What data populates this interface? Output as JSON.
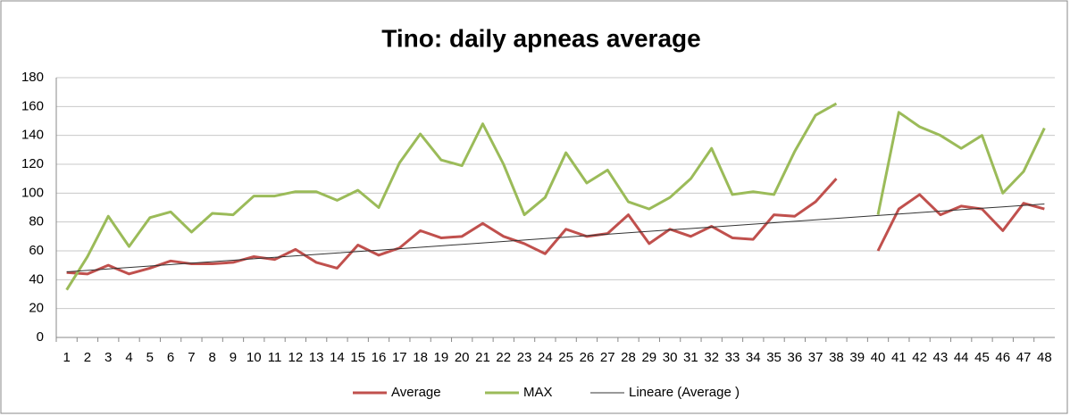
{
  "chart_data": {
    "type": "line",
    "title": "Tino: daily apneas average",
    "categories": [
      1,
      2,
      3,
      4,
      5,
      6,
      7,
      8,
      9,
      10,
      11,
      12,
      13,
      14,
      15,
      16,
      17,
      18,
      19,
      20,
      21,
      22,
      23,
      24,
      25,
      26,
      27,
      28,
      29,
      30,
      31,
      32,
      33,
      34,
      35,
      36,
      37,
      38,
      39,
      40,
      41,
      42,
      43,
      44,
      45,
      46,
      47,
      48
    ],
    "series": [
      {
        "name": "Average",
        "color": "#c0504d",
        "values": [
          45,
          44,
          50,
          44,
          48,
          53,
          51,
          51,
          52,
          56,
          54,
          61,
          52,
          48,
          64,
          57,
          62,
          74,
          69,
          70,
          79,
          70,
          65,
          58,
          75,
          70,
          72,
          85,
          65,
          75,
          70,
          77,
          69,
          68,
          85,
          84,
          94,
          110,
          null,
          60,
          89,
          99,
          85,
          91,
          89,
          74,
          93,
          89
        ]
      },
      {
        "name": "MAX",
        "color": "#9bbb59",
        "values": [
          33,
          56,
          84,
          63,
          83,
          87,
          73,
          86,
          85,
          98,
          98,
          101,
          101,
          95,
          102,
          90,
          121,
          141,
          123,
          119,
          148,
          120,
          85,
          97,
          128,
          107,
          116,
          94,
          89,
          97,
          110,
          131,
          99,
          101,
          99,
          129,
          154,
          162,
          null,
          85,
          156,
          146,
          140,
          131,
          140,
          100,
          115,
          145
        ]
      },
      {
        "name": "Lineare (Average )",
        "color": "#333333",
        "values": [
          45.5,
          46.5,
          47.5,
          48.5,
          49.5,
          50.5,
          51.5,
          52.5,
          53.5,
          54.5,
          55.5,
          56.5,
          57.5,
          58.5,
          59.5,
          60.5,
          61.5,
          62.5,
          63.5,
          64.5,
          65.5,
          66.5,
          67.5,
          68.5,
          69.5,
          70.5,
          71.5,
          72.5,
          73.5,
          74.5,
          75.5,
          76.5,
          77.5,
          78.5,
          79.5,
          80.5,
          81.5,
          82.5,
          83.5,
          84.5,
          85.5,
          86.5,
          87.5,
          88.5,
          89.5,
          90.5,
          91.5,
          92.5
        ]
      }
    ],
    "ylim": [
      0,
      180
    ],
    "yticks": [
      0,
      20,
      40,
      60,
      80,
      100,
      120,
      140,
      160,
      180
    ],
    "grid": true,
    "legend": "bottom"
  }
}
